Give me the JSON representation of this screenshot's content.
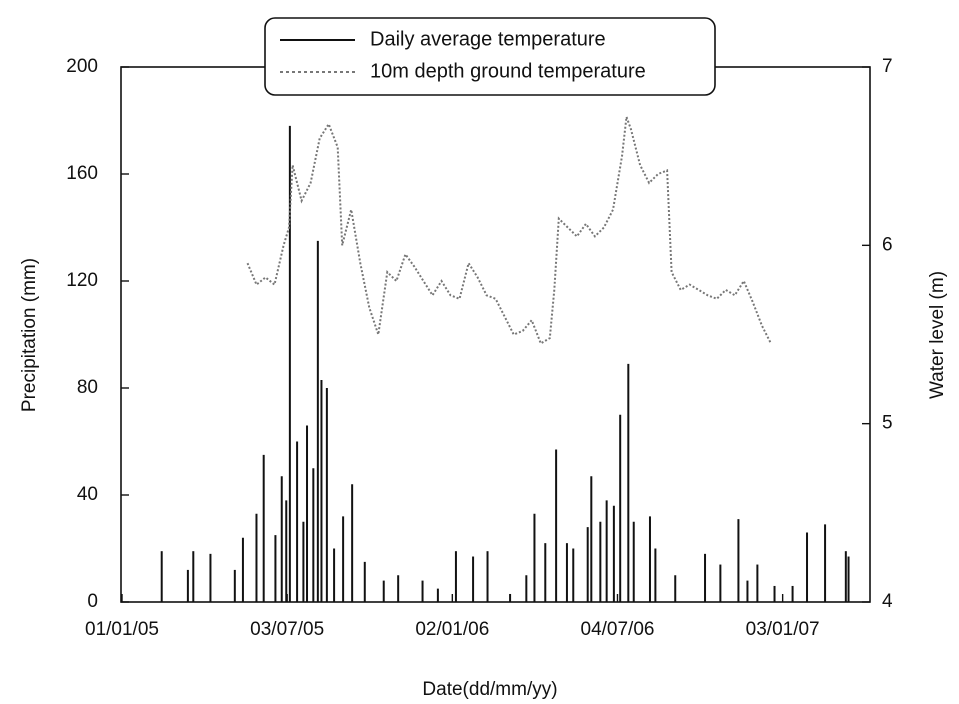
{
  "chart_data": {
    "type": "bar-line",
    "x_label": "Date(dd/mm/yy)",
    "y_label": "Precipitation (mm)",
    "y2_label": "Water level (m)",
    "xlim": [
      "01/01/05",
      "12/04/07"
    ],
    "xticks": [
      "01/01/05",
      "03/07/05",
      "02/01/06",
      "04/07/06",
      "03/01/07"
    ],
    "ylim": [
      0,
      200
    ],
    "yticks": [
      0,
      40,
      80,
      120,
      160,
      200
    ],
    "y2lim": [
      4,
      7
    ],
    "y2ticks": [
      4,
      5,
      6,
      7
    ],
    "legend": "top",
    "series": [
      {
        "name": "Daily average temperature",
        "type": "bar",
        "color": "#111111",
        "x": [
          "14/02/05",
          "15/03/05",
          "21/03/05",
          "09/04/05",
          "06/05/05",
          "15/05/05",
          "30/05/05",
          "07/06/05",
          "20/06/05",
          "27/06/05",
          "02/07/05",
          "06/07/05",
          "14/07/05",
          "21/07/05",
          "25/07/05",
          "01/08/05",
          "06/08/05",
          "10/08/05",
          "16/08/05",
          "24/08/05",
          "03/09/05",
          "13/09/05",
          "27/09/05",
          "18/10/05",
          "03/11/05",
          "30/11/05",
          "17/12/05",
          "06/01/06",
          "25/01/06",
          "10/02/06",
          "07/03/06",
          "25/03/06",
          "03/04/06",
          "15/04/06",
          "27/04/06",
          "09/05/06",
          "16/05/06",
          "01/06/06",
          "05/06/06",
          "15/06/06",
          "22/06/06",
          "30/06/06",
          "07/07/06",
          "16/07/06",
          "22/07/06",
          "09/08/06",
          "15/08/06",
          "06/09/06",
          "09/10/06",
          "26/10/06",
          "15/11/06",
          "25/11/06",
          "06/12/06",
          "25/12/06",
          "14/01/07",
          "30/01/07",
          "19/02/07",
          "14/03/07",
          "17/03/07"
        ],
        "values": [
          19,
          12,
          19,
          18,
          12,
          24,
          33,
          55,
          25,
          47,
          38,
          178,
          60,
          30,
          66,
          50,
          135,
          83,
          80,
          20,
          32,
          44,
          15,
          8,
          10,
          8,
          5,
          19,
          17,
          19,
          3,
          10,
          33,
          22,
          57,
          22,
          20,
          28,
          47,
          30,
          38,
          36,
          70,
          89,
          30,
          32,
          20,
          10,
          18,
          14,
          31,
          8,
          14,
          6,
          6,
          26,
          29,
          19,
          17
        ]
      },
      {
        "name": "10m depth ground temperature",
        "type": "line",
        "axis": "y2",
        "color": "#777777",
        "x": [
          "20/05/05",
          "30/05/05",
          "09/06/05",
          "19/06/05",
          "29/06/05",
          "05/07/05",
          "09/07/05",
          "19/07/05",
          "29/07/05",
          "08/08/05",
          "18/08/05",
          "28/08/05",
          "02/09/05",
          "12/09/05",
          "22/09/05",
          "02/10/05",
          "12/10/05",
          "22/10/05",
          "01/11/05",
          "11/11/05",
          "21/11/05",
          "01/12/05",
          "11/12/05",
          "21/12/05",
          "31/12/05",
          "10/01/06",
          "20/01/06",
          "30/01/06",
          "09/02/06",
          "19/02/06",
          "01/03/06",
          "11/03/06",
          "21/03/06",
          "31/03/06",
          "10/04/06",
          "20/04/06",
          "25/04/06",
          "30/04/06",
          "10/05/06",
          "20/05/06",
          "30/05/06",
          "09/06/06",
          "19/06/06",
          "29/06/06",
          "09/07/06",
          "14/07/06",
          "19/07/06",
          "29/07/06",
          "08/08/06",
          "18/08/06",
          "28/08/06",
          "02/09/06",
          "12/09/06",
          "22/09/06",
          "02/10/06",
          "12/10/06",
          "22/10/06",
          "01/11/06",
          "11/11/06",
          "21/11/06",
          "01/12/06",
          "11/12/06",
          "21/12/06"
        ],
        "values": [
          5.9,
          5.78,
          5.82,
          5.78,
          6.0,
          6.1,
          6.45,
          6.25,
          6.35,
          6.6,
          6.68,
          6.55,
          6.0,
          6.2,
          5.9,
          5.65,
          5.5,
          5.85,
          5.8,
          5.95,
          5.88,
          5.8,
          5.72,
          5.8,
          5.72,
          5.7,
          5.9,
          5.82,
          5.72,
          5.7,
          5.6,
          5.5,
          5.52,
          5.58,
          5.45,
          5.48,
          5.75,
          6.15,
          6.1,
          6.05,
          6.12,
          6.05,
          6.1,
          6.2,
          6.5,
          6.72,
          6.65,
          6.45,
          6.35,
          6.4,
          6.42,
          5.85,
          5.75,
          5.78,
          5.75,
          5.72,
          5.7,
          5.75,
          5.72,
          5.8,
          5.68,
          5.55,
          5.45
        ]
      }
    ]
  }
}
